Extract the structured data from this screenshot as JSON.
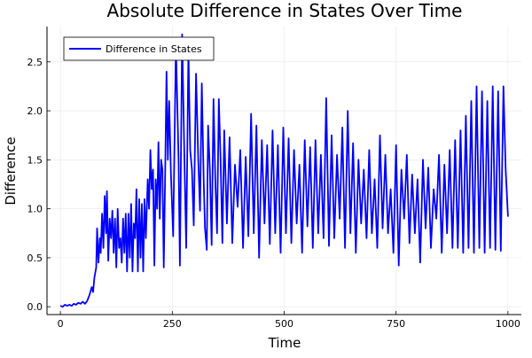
{
  "chart_data": {
    "type": "line",
    "title": "Absolute Difference in States Over Time",
    "xlabel": "Time",
    "ylabel": "Difference",
    "xlim": [
      -30,
      1030
    ],
    "ylim": [
      -0.08,
      2.86
    ],
    "xticks": [
      0,
      250,
      500,
      750,
      1000
    ],
    "xtick_labels": [
      "0",
      "250",
      "500",
      "750",
      "1000"
    ],
    "yticks": [
      0,
      0.5,
      1,
      1.5,
      2,
      2.5
    ],
    "ytick_labels": [
      "0.0",
      "0.5",
      "1.0",
      "1.5",
      "2.0",
      "2.5"
    ],
    "grid": true,
    "legend_position": "top-left",
    "series": [
      {
        "name": "Difference in States",
        "color": "#0000ff",
        "x": [
          0,
          5,
          10,
          15,
          20,
          25,
          30,
          35,
          40,
          45,
          50,
          55,
          60,
          65,
          70,
          73,
          76,
          80,
          82,
          85,
          88,
          90,
          93,
          96,
          99,
          102,
          104,
          107,
          110,
          113,
          116,
          119,
          122,
          125,
          128,
          131,
          134,
          137,
          140,
          143,
          146,
          149,
          152,
          155,
          158,
          161,
          164,
          167,
          170,
          173,
          176,
          179,
          182,
          185,
          188,
          191,
          195,
          198,
          201,
          204,
          207,
          210,
          213,
          216,
          219,
          222,
          225,
          228,
          231,
          234,
          237,
          240,
          243,
          247,
          252,
          258,
          264,
          267,
          272,
          277,
          281,
          286,
          290,
          294,
          298,
          303,
          308,
          312,
          316,
          320,
          323,
          327,
          330,
          334,
          338,
          342,
          346,
          350,
          354,
          358,
          362,
          366,
          372,
          378,
          384,
          390,
          396,
          402,
          408,
          414,
          420,
          426,
          432,
          438,
          444,
          450,
          456,
          462,
          468,
          474,
          480,
          486,
          492,
          498,
          504,
          510,
          516,
          522,
          528,
          534,
          540,
          546,
          552,
          558,
          564,
          570,
          576,
          582,
          588,
          594,
          600,
          606,
          612,
          618,
          624,
          630,
          636,
          642,
          648,
          654,
          660,
          666,
          672,
          678,
          684,
          690,
          696,
          702,
          708,
          714,
          720,
          726,
          732,
          738,
          744,
          750,
          756,
          762,
          768,
          774,
          780,
          786,
          792,
          798,
          804,
          810,
          816,
          822,
          828,
          834,
          840,
          846,
          852,
          858,
          864,
          870,
          876,
          882,
          888,
          894,
          900,
          906,
          912,
          918,
          924,
          930,
          936,
          942,
          948,
          954,
          960,
          966,
          972,
          978,
          984,
          990,
          995,
          1000
        ],
        "y": [
          0.01,
          0.0,
          0.02,
          0.01,
          0.02,
          0.01,
          0.03,
          0.02,
          0.04,
          0.03,
          0.05,
          0.03,
          0.06,
          0.12,
          0.2,
          0.15,
          0.3,
          0.4,
          0.8,
          0.45,
          0.7,
          0.55,
          0.95,
          0.6,
          1.13,
          0.75,
          1.18,
          0.47,
          0.9,
          0.7,
          0.98,
          0.55,
          0.9,
          0.4,
          1.0,
          0.6,
          0.7,
          0.45,
          0.9,
          0.55,
          0.95,
          0.36,
          0.95,
          0.5,
          1.05,
          0.36,
          0.85,
          0.7,
          1.2,
          0.36,
          1.1,
          0.5,
          1.05,
          0.36,
          1.1,
          0.7,
          1.3,
          1.0,
          1.6,
          1.2,
          1.4,
          0.42,
          1.3,
          1.0,
          1.68,
          0.9,
          1.5,
          1.4,
          0.4,
          1.3,
          2.4,
          1.5,
          2.1,
          1.35,
          0.72,
          2.68,
          1.5,
          0.42,
          2.78,
          1.55,
          0.6,
          2.62,
          1.6,
          1.4,
          0.83,
          2.38,
          1.5,
          0.98,
          2.28,
          1.3,
          0.8,
          0.58,
          1.85,
          1.4,
          0.63,
          2.12,
          1.3,
          0.75,
          2.12,
          1.5,
          0.65,
          1.8,
          0.85,
          1.73,
          0.65,
          1.45,
          1.02,
          1.6,
          0.6,
          1.53,
          0.72,
          1.97,
          0.75,
          1.85,
          0.5,
          1.7,
          0.85,
          1.65,
          0.64,
          1.8,
          0.75,
          1.65,
          0.55,
          1.83,
          0.75,
          1.72,
          0.65,
          1.6,
          0.85,
          1.45,
          0.55,
          1.7,
          0.82,
          1.63,
          0.6,
          1.7,
          0.75,
          1.55,
          0.7,
          2.13,
          0.62,
          1.75,
          0.7,
          1.55,
          0.9,
          1.83,
          0.6,
          2.0,
          0.75,
          1.67,
          0.55,
          1.5,
          0.85,
          1.4,
          0.7,
          1.6,
          0.75,
          1.3,
          0.6,
          1.75,
          0.8,
          1.55,
          0.75,
          1.2,
          0.55,
          1.65,
          0.42,
          1.4,
          0.9,
          1.55,
          0.65,
          1.35,
          0.75,
          1.3,
          0.45,
          1.5,
          0.8,
          1.42,
          0.6,
          1.2,
          0.9,
          1.55,
          0.55,
          1.45,
          0.75,
          1.6,
          0.6,
          1.7,
          0.6,
          1.8,
          0.55,
          1.95,
          0.6,
          2.1,
          0.55,
          2.25,
          0.6,
          2.2,
          0.55,
          2.1,
          0.6,
          2.25,
          0.58,
          2.2,
          0.57,
          2.25,
          1.4,
          0.92
        ]
      }
    ]
  }
}
